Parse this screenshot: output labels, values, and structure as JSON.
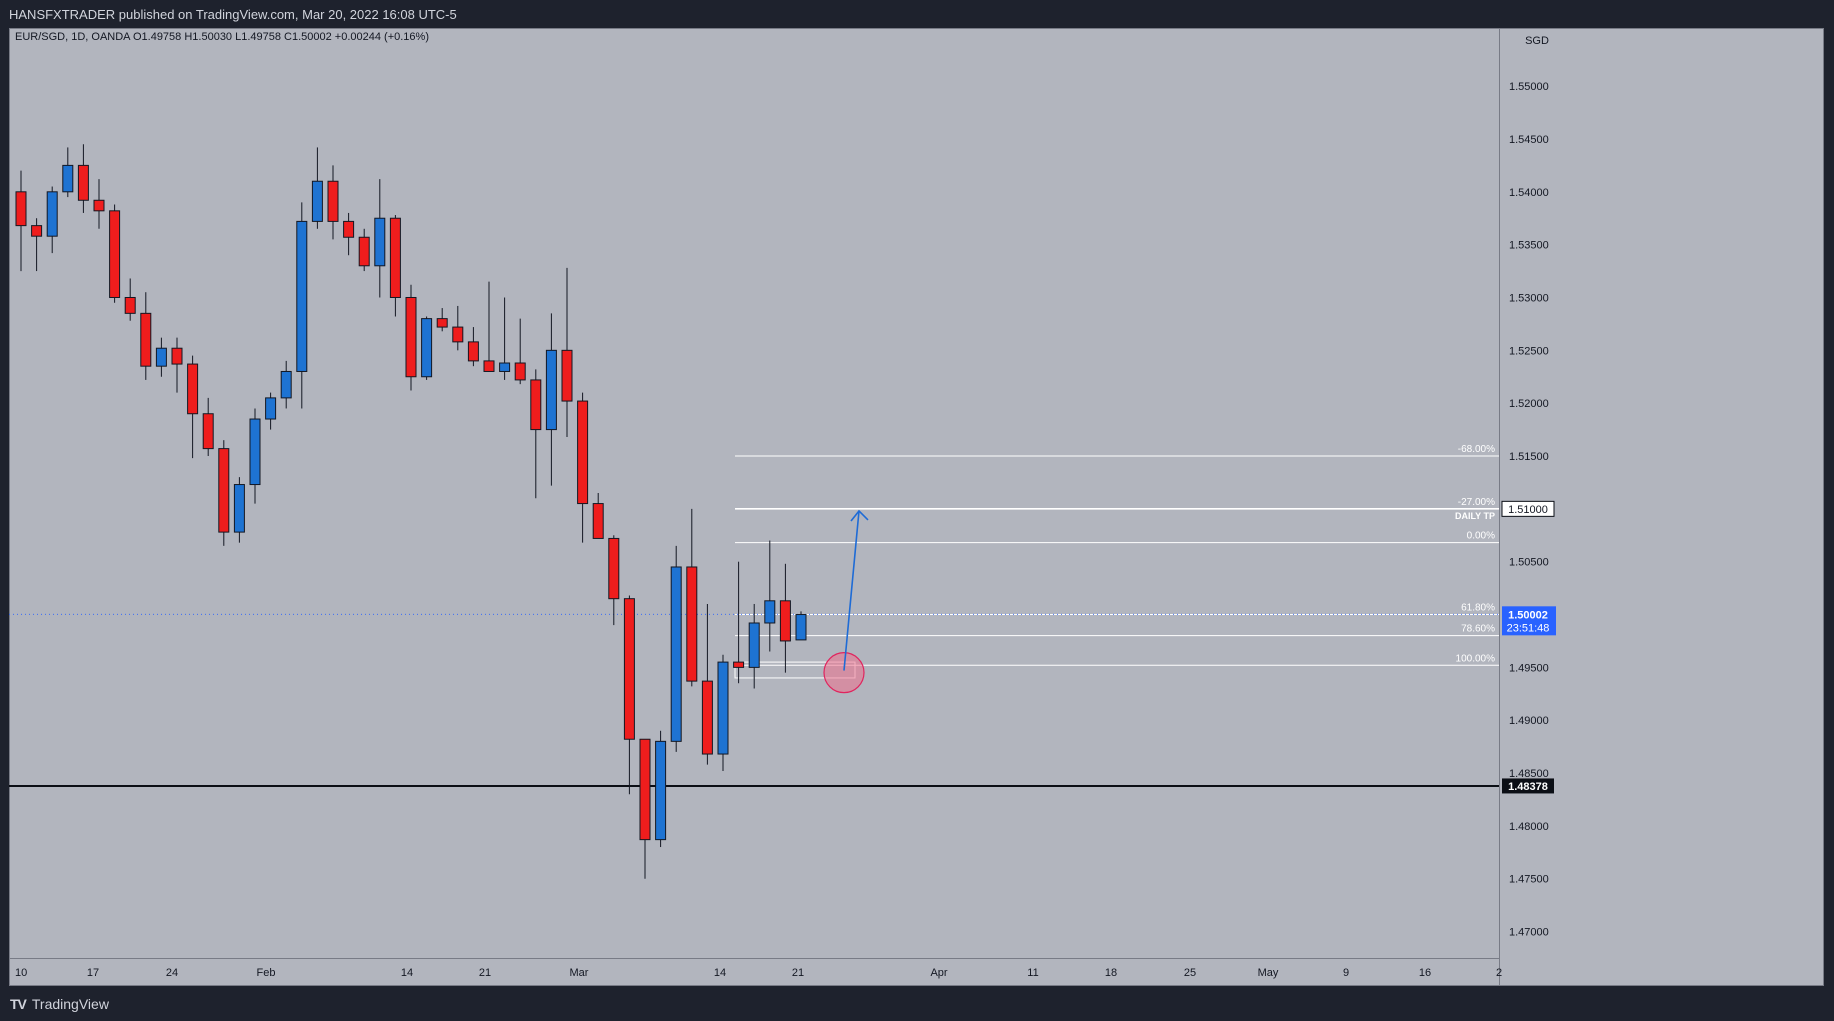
{
  "header": {
    "publisher": "HANSFXTRADER published on TradingView.com, Mar 20, 2022 16:08 UTC-5"
  },
  "legend": {
    "text": "EUR/SGD, 1D, OANDA  O1.49758  H1.50030  L1.49758  C1.50002  +0.00244 (+0.16%)"
  },
  "currency": "SGD",
  "price_axis": {
    "labels": [
      "1.55000",
      "1.54500",
      "1.54000",
      "1.53500",
      "1.53000",
      "1.52500",
      "1.52000",
      "1.51500",
      "1.51000",
      "1.50500",
      "1.50000",
      "1.49500",
      "1.49000",
      "1.48500",
      "1.48000",
      "1.47500",
      "1.47000"
    ],
    "current_price": "1.50002",
    "countdown": "23:51:48",
    "tp_label": "1.51000",
    "support_label": "1.48378"
  },
  "time_axis": {
    "labels": [
      "10",
      "17",
      "24",
      "Feb",
      "14",
      "21",
      "Mar",
      "14",
      "21",
      "Apr",
      "11",
      "18",
      "25",
      "May",
      "9",
      "16",
      "2"
    ]
  },
  "fib": {
    "labels": [
      "-68.00%",
      "-27.00%",
      "DAILY TP",
      "0.00%",
      "61.80%",
      "78.60%",
      "100.00%"
    ]
  },
  "brand": {
    "name": "TradingView",
    "logo": "TV"
  },
  "colors": {
    "bull": "#1e73d2",
    "bear": "#ef1d1d",
    "background": "#b2b5be",
    "accent": "#2962ff",
    "circle": "#ef6f8c"
  },
  "chart_data": {
    "type": "candlestick",
    "symbol": "EUR/SGD",
    "interval": "1D",
    "source": "OANDA",
    "ylim": [
      1.4675,
      1.5555
    ],
    "candles": [
      {
        "o": 1.54,
        "h": 1.542,
        "l": 1.5325,
        "c": 1.5368
      },
      {
        "o": 1.5368,
        "h": 1.5375,
        "l": 1.5325,
        "c": 1.5358
      },
      {
        "o": 1.5358,
        "h": 1.5405,
        "l": 1.5342,
        "c": 1.54
      },
      {
        "o": 1.54,
        "h": 1.5442,
        "l": 1.5395,
        "c": 1.5425
      },
      {
        "o": 1.5425,
        "h": 1.5445,
        "l": 1.538,
        "c": 1.5392
      },
      {
        "o": 1.5392,
        "h": 1.5412,
        "l": 1.5365,
        "c": 1.5382
      },
      {
        "o": 1.5382,
        "h": 1.5388,
        "l": 1.5295,
        "c": 1.53
      },
      {
        "o": 1.53,
        "h": 1.5318,
        "l": 1.5278,
        "c": 1.5285
      },
      {
        "o": 1.5285,
        "h": 1.5305,
        "l": 1.5222,
        "c": 1.5235
      },
      {
        "o": 1.5235,
        "h": 1.5262,
        "l": 1.5225,
        "c": 1.5252
      },
      {
        "o": 1.5252,
        "h": 1.5262,
        "l": 1.521,
        "c": 1.5237
      },
      {
        "o": 1.5237,
        "h": 1.5245,
        "l": 1.5148,
        "c": 1.519
      },
      {
        "o": 1.519,
        "h": 1.5205,
        "l": 1.515,
        "c": 1.5157
      },
      {
        "o": 1.5157,
        "h": 1.5165,
        "l": 1.5065,
        "c": 1.5078
      },
      {
        "o": 1.5078,
        "h": 1.513,
        "l": 1.5068,
        "c": 1.5123
      },
      {
        "o": 1.5123,
        "h": 1.5195,
        "l": 1.5105,
        "c": 1.5185
      },
      {
        "o": 1.5185,
        "h": 1.521,
        "l": 1.5175,
        "c": 1.5205
      },
      {
        "o": 1.5205,
        "h": 1.524,
        "l": 1.5195,
        "c": 1.523
      },
      {
        "o": 1.523,
        "h": 1.539,
        "l": 1.5195,
        "c": 1.5372
      },
      {
        "o": 1.5372,
        "h": 1.5442,
        "l": 1.5365,
        "c": 1.541
      },
      {
        "o": 1.541,
        "h": 1.5425,
        "l": 1.5355,
        "c": 1.5372
      },
      {
        "o": 1.5372,
        "h": 1.538,
        "l": 1.534,
        "c": 1.5357
      },
      {
        "o": 1.5357,
        "h": 1.5365,
        "l": 1.5325,
        "c": 1.533
      },
      {
        "o": 1.533,
        "h": 1.5412,
        "l": 1.53,
        "c": 1.5375
      },
      {
        "o": 1.5375,
        "h": 1.5378,
        "l": 1.5282,
        "c": 1.53
      },
      {
        "o": 1.53,
        "h": 1.5312,
        "l": 1.5212,
        "c": 1.5225
      },
      {
        "o": 1.5225,
        "h": 1.5282,
        "l": 1.5222,
        "c": 1.528
      },
      {
        "o": 1.528,
        "h": 1.529,
        "l": 1.5268,
        "c": 1.5272
      },
      {
        "o": 1.5272,
        "h": 1.5292,
        "l": 1.525,
        "c": 1.5258
      },
      {
        "o": 1.5258,
        "h": 1.5272,
        "l": 1.5235,
        "c": 1.524
      },
      {
        "o": 1.524,
        "h": 1.5315,
        "l": 1.523,
        "c": 1.523
      },
      {
        "o": 1.523,
        "h": 1.53,
        "l": 1.5222,
        "c": 1.5238
      },
      {
        "o": 1.5238,
        "h": 1.528,
        "l": 1.5218,
        "c": 1.5222
      },
      {
        "o": 1.5222,
        "h": 1.5232,
        "l": 1.511,
        "c": 1.5175
      },
      {
        "o": 1.5175,
        "h": 1.5285,
        "l": 1.5122,
        "c": 1.525
      },
      {
        "o": 1.525,
        "h": 1.5328,
        "l": 1.5168,
        "c": 1.5202
      },
      {
        "o": 1.5202,
        "h": 1.521,
        "l": 1.5068,
        "c": 1.5105
      },
      {
        "o": 1.5105,
        "h": 1.5115,
        "l": 1.5072,
        "c": 1.5072
      },
      {
        "o": 1.5072,
        "h": 1.5075,
        "l": 1.499,
        "c": 1.5015
      },
      {
        "o": 1.5015,
        "h": 1.5018,
        "l": 1.483,
        "c": 1.4882
      },
      {
        "o": 1.4882,
        "h": 1.4882,
        "l": 1.475,
        "c": 1.4787
      },
      {
        "o": 1.4787,
        "h": 1.489,
        "l": 1.478,
        "c": 1.488
      },
      {
        "o": 1.488,
        "h": 1.5065,
        "l": 1.487,
        "c": 1.5045
      },
      {
        "o": 1.5045,
        "h": 1.51,
        "l": 1.4932,
        "c": 1.4937
      },
      {
        "o": 1.4937,
        "h": 1.501,
        "l": 1.4858,
        "c": 1.4868
      },
      {
        "o": 1.4868,
        "h": 1.4962,
        "l": 1.4852,
        "c": 1.4955
      },
      {
        "o": 1.4955,
        "h": 1.505,
        "l": 1.4935,
        "c": 1.495
      },
      {
        "o": 1.495,
        "h": 1.501,
        "l": 1.493,
        "c": 1.4992
      },
      {
        "o": 1.4992,
        "h": 1.507,
        "l": 1.4965,
        "c": 1.5013
      },
      {
        "o": 1.5013,
        "h": 1.5048,
        "l": 1.4945,
        "c": 1.4975
      },
      {
        "o": 1.4976,
        "h": 1.5003,
        "l": 1.4976,
        "c": 1.5
      }
    ],
    "levels": [
      {
        "price": 1.515,
        "label": "-68.00%"
      },
      {
        "price": 1.51,
        "label": "-27.00%"
      },
      {
        "price": 1.5068,
        "label": "0.00%"
      },
      {
        "price": 1.5,
        "label": "61.80%"
      },
      {
        "price": 1.498,
        "label": "78.60%"
      },
      {
        "price": 1.4952,
        "label": "100.00%"
      }
    ],
    "tp_price": 1.51,
    "support_price": 1.48378,
    "current_price": 1.50002,
    "entry_zone": [
      1.494,
      1.4955
    ],
    "arrow": {
      "from": 1.4947,
      "to": 1.5098
    }
  }
}
